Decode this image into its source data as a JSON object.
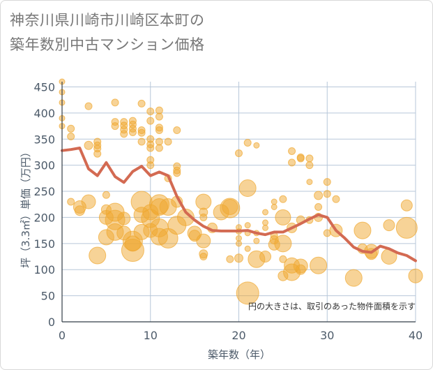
{
  "chart_data": {
    "type": "scatter",
    "title": "神奈川県川崎市川崎区本町の\n築年数別中古マンション価格",
    "xlabel": "築年数（年）",
    "ylabel": "坪（3.3㎡）単価（万円）",
    "note": "円の大きさは、取引のあった物件面積を示す",
    "xlim": [
      0,
      40
    ],
    "ylim": [
      0,
      460
    ],
    "xticks": [
      0,
      10,
      20,
      30,
      40
    ],
    "yticks": [
      0,
      50,
      100,
      150,
      200,
      250,
      300,
      350,
      400,
      450
    ],
    "grid": true,
    "colors": {
      "bubble": "#f0a830",
      "line": "#d36a52",
      "grid": "#b7c7d9"
    },
    "trend_line": {
      "x": [
        0,
        1,
        2,
        3,
        4,
        5,
        6,
        7,
        8,
        9,
        10,
        11,
        12,
        13,
        14,
        15,
        16,
        17,
        18,
        19,
        20,
        21,
        22,
        23,
        24,
        25,
        26,
        27,
        28,
        29,
        30,
        31,
        32,
        33,
        34,
        35,
        36,
        37,
        38,
        39,
        40
      ],
      "y": [
        328,
        330,
        333,
        293,
        280,
        305,
        278,
        267,
        288,
        298,
        280,
        287,
        280,
        240,
        210,
        195,
        183,
        175,
        174,
        174,
        174,
        175,
        170,
        167,
        172,
        172,
        180,
        188,
        197,
        205,
        200,
        175,
        160,
        143,
        135,
        133,
        145,
        140,
        132,
        127,
        117
      ]
    },
    "points": [
      {
        "x": 0,
        "y": 460,
        "s": 4
      },
      {
        "x": 0,
        "y": 440,
        "s": 4
      },
      {
        "x": 0,
        "y": 420,
        "s": 4
      },
      {
        "x": 0,
        "y": 390,
        "s": 4
      },
      {
        "x": 0,
        "y": 375,
        "s": 4
      },
      {
        "x": 1,
        "y": 370,
        "s": 5
      },
      {
        "x": 1,
        "y": 355,
        "s": 5
      },
      {
        "x": 1,
        "y": 230,
        "s": 5
      },
      {
        "x": 2,
        "y": 220,
        "s": 9
      },
      {
        "x": 2,
        "y": 213,
        "s": 7
      },
      {
        "x": 3,
        "y": 413,
        "s": 5
      },
      {
        "x": 3,
        "y": 338,
        "s": 6
      },
      {
        "x": 3,
        "y": 230,
        "s": 10
      },
      {
        "x": 4,
        "y": 345,
        "s": 5
      },
      {
        "x": 4,
        "y": 338,
        "s": 5
      },
      {
        "x": 4,
        "y": 332,
        "s": 5
      },
      {
        "x": 4,
        "y": 322,
        "s": 5
      },
      {
        "x": 4,
        "y": 127,
        "s": 12
      },
      {
        "x": 5,
        "y": 243,
        "s": 5
      },
      {
        "x": 5,
        "y": 215,
        "s": 7
      },
      {
        "x": 5,
        "y": 200,
        "s": 10
      },
      {
        "x": 5,
        "y": 162,
        "s": 11
      },
      {
        "x": 6,
        "y": 420,
        "s": 5
      },
      {
        "x": 6,
        "y": 383,
        "s": 5
      },
      {
        "x": 6,
        "y": 375,
        "s": 5
      },
      {
        "x": 6,
        "y": 210,
        "s": 13
      },
      {
        "x": 6,
        "y": 195,
        "s": 14
      },
      {
        "x": 6,
        "y": 172,
        "s": 12
      },
      {
        "x": 7,
        "y": 383,
        "s": 5
      },
      {
        "x": 7,
        "y": 376,
        "s": 5
      },
      {
        "x": 7,
        "y": 368,
        "s": 5
      },
      {
        "x": 7,
        "y": 360,
        "s": 5
      },
      {
        "x": 7,
        "y": 198,
        "s": 9
      },
      {
        "x": 7,
        "y": 170,
        "s": 10
      },
      {
        "x": 8,
        "y": 385,
        "s": 5
      },
      {
        "x": 8,
        "y": 378,
        "s": 5
      },
      {
        "x": 8,
        "y": 370,
        "s": 5
      },
      {
        "x": 8,
        "y": 363,
        "s": 5
      },
      {
        "x": 8,
        "y": 155,
        "s": 14
      },
      {
        "x": 8,
        "y": 150,
        "s": 11
      },
      {
        "x": 8,
        "y": 137,
        "s": 16
      },
      {
        "x": 9,
        "y": 418,
        "s": 5
      },
      {
        "x": 9,
        "y": 367,
        "s": 5
      },
      {
        "x": 9,
        "y": 362,
        "s": 5
      },
      {
        "x": 9,
        "y": 345,
        "s": 5
      },
      {
        "x": 9,
        "y": 230,
        "s": 15
      },
      {
        "x": 9,
        "y": 205,
        "s": 11
      },
      {
        "x": 9,
        "y": 172,
        "s": 11
      },
      {
        "x": 10,
        "y": 403,
        "s": 5
      },
      {
        "x": 10,
        "y": 385,
        "s": 5
      },
      {
        "x": 10,
        "y": 350,
        "s": 5
      },
      {
        "x": 10,
        "y": 340,
        "s": 5
      },
      {
        "x": 10,
        "y": 333,
        "s": 5
      },
      {
        "x": 10,
        "y": 310,
        "s": 5
      },
      {
        "x": 10,
        "y": 300,
        "s": 5
      },
      {
        "x": 10,
        "y": 210,
        "s": 11
      },
      {
        "x": 10,
        "y": 198,
        "s": 13
      },
      {
        "x": 10,
        "y": 175,
        "s": 10
      },
      {
        "x": 11,
        "y": 405,
        "s": 5
      },
      {
        "x": 11,
        "y": 393,
        "s": 5
      },
      {
        "x": 11,
        "y": 372,
        "s": 5
      },
      {
        "x": 11,
        "y": 367,
        "s": 5
      },
      {
        "x": 11,
        "y": 345,
        "s": 5
      },
      {
        "x": 11,
        "y": 333,
        "s": 5
      },
      {
        "x": 11,
        "y": 225,
        "s": 14
      },
      {
        "x": 11,
        "y": 220,
        "s": 12
      },
      {
        "x": 11,
        "y": 180,
        "s": 13
      },
      {
        "x": 11,
        "y": 163,
        "s": 12
      },
      {
        "x": 12,
        "y": 345,
        "s": 5
      },
      {
        "x": 12,
        "y": 275,
        "s": 5
      },
      {
        "x": 12,
        "y": 220,
        "s": 12
      },
      {
        "x": 12,
        "y": 160,
        "s": 14
      },
      {
        "x": 13,
        "y": 367,
        "s": 5
      },
      {
        "x": 13,
        "y": 298,
        "s": 5
      },
      {
        "x": 13,
        "y": 290,
        "s": 5
      },
      {
        "x": 13,
        "y": 285,
        "s": 5
      },
      {
        "x": 13,
        "y": 230,
        "s": 8
      },
      {
        "x": 13,
        "y": 185,
        "s": 13
      },
      {
        "x": 14,
        "y": 200,
        "s": 12
      },
      {
        "x": 15,
        "y": 170,
        "s": 10
      },
      {
        "x": 15,
        "y": 165,
        "s": 8
      },
      {
        "x": 16,
        "y": 230,
        "s": 11
      },
      {
        "x": 16,
        "y": 210,
        "s": 6
      },
      {
        "x": 16,
        "y": 200,
        "s": 5
      },
      {
        "x": 16,
        "y": 155,
        "s": 10
      },
      {
        "x": 16,
        "y": 130,
        "s": 6
      },
      {
        "x": 16,
        "y": 125,
        "s": 5
      },
      {
        "x": 17,
        "y": 180,
        "s": 7
      },
      {
        "x": 18,
        "y": 210,
        "s": 11
      },
      {
        "x": 19,
        "y": 218,
        "s": 14
      },
      {
        "x": 19,
        "y": 220,
        "s": 11
      },
      {
        "x": 19,
        "y": 120,
        "s": 5
      },
      {
        "x": 20,
        "y": 323,
        "s": 5
      },
      {
        "x": 20,
        "y": 181,
        "s": 4
      },
      {
        "x": 20,
        "y": 173,
        "s": 4
      },
      {
        "x": 20,
        "y": 160,
        "s": 4
      },
      {
        "x": 20,
        "y": 150,
        "s": 4
      },
      {
        "x": 20,
        "y": 122,
        "s": 6
      },
      {
        "x": 21,
        "y": 343,
        "s": 5
      },
      {
        "x": 21,
        "y": 256,
        "s": 12
      },
      {
        "x": 21,
        "y": 185,
        "s": 4
      },
      {
        "x": 21,
        "y": 170,
        "s": 4
      },
      {
        "x": 21,
        "y": 140,
        "s": 4
      },
      {
        "x": 21,
        "y": 55,
        "s": 16
      },
      {
        "x": 22,
        "y": 338,
        "s": 4
      },
      {
        "x": 22,
        "y": 170,
        "s": 4
      },
      {
        "x": 22,
        "y": 155,
        "s": 4
      },
      {
        "x": 22,
        "y": 120,
        "s": 12
      },
      {
        "x": 23,
        "y": 210,
        "s": 4
      },
      {
        "x": 23,
        "y": 190,
        "s": 4
      },
      {
        "x": 23,
        "y": 180,
        "s": 4
      },
      {
        "x": 23,
        "y": 125,
        "s": 8
      },
      {
        "x": 24,
        "y": 230,
        "s": 4
      },
      {
        "x": 24,
        "y": 220,
        "s": 4
      },
      {
        "x": 24,
        "y": 165,
        "s": 5
      },
      {
        "x": 24,
        "y": 157,
        "s": 6
      },
      {
        "x": 24,
        "y": 148,
        "s": 8
      },
      {
        "x": 25,
        "y": 235,
        "s": 5
      },
      {
        "x": 25,
        "y": 200,
        "s": 11
      },
      {
        "x": 25,
        "y": 150,
        "s": 12
      },
      {
        "x": 25,
        "y": 120,
        "s": 5
      },
      {
        "x": 25,
        "y": 88,
        "s": 7
      },
      {
        "x": 26,
        "y": 327,
        "s": 5
      },
      {
        "x": 26,
        "y": 305,
        "s": 5
      },
      {
        "x": 26,
        "y": 180,
        "s": 7
      },
      {
        "x": 26,
        "y": 108,
        "s": 11
      },
      {
        "x": 26,
        "y": 95,
        "s": 12
      },
      {
        "x": 27,
        "y": 315,
        "s": 5
      },
      {
        "x": 27,
        "y": 313,
        "s": 5
      },
      {
        "x": 27,
        "y": 195,
        "s": 6
      },
      {
        "x": 27,
        "y": 107,
        "s": 10
      },
      {
        "x": 27,
        "y": 100,
        "s": 7
      },
      {
        "x": 28,
        "y": 313,
        "s": 5
      },
      {
        "x": 28,
        "y": 300,
        "s": 5
      },
      {
        "x": 28,
        "y": 268,
        "s": 4
      },
      {
        "x": 28,
        "y": 195,
        "s": 5
      },
      {
        "x": 29,
        "y": 242,
        "s": 6
      },
      {
        "x": 29,
        "y": 220,
        "s": 5
      },
      {
        "x": 29,
        "y": 200,
        "s": 6
      },
      {
        "x": 29,
        "y": 108,
        "s": 12
      },
      {
        "x": 30,
        "y": 268,
        "s": 5
      },
      {
        "x": 30,
        "y": 245,
        "s": 5
      },
      {
        "x": 30,
        "y": 170,
        "s": 5
      },
      {
        "x": 31,
        "y": 235,
        "s": 5
      },
      {
        "x": 31,
        "y": 175,
        "s": 9
      },
      {
        "x": 33,
        "y": 84,
        "s": 12
      },
      {
        "x": 34,
        "y": 175,
        "s": 12
      },
      {
        "x": 34,
        "y": 140,
        "s": 7
      },
      {
        "x": 35,
        "y": 135,
        "s": 10
      },
      {
        "x": 35,
        "y": 130,
        "s": 8
      },
      {
        "x": 37,
        "y": 185,
        "s": 8
      },
      {
        "x": 37,
        "y": 125,
        "s": 11
      },
      {
        "x": 39,
        "y": 223,
        "s": 8
      },
      {
        "x": 39,
        "y": 180,
        "s": 15
      },
      {
        "x": 40,
        "y": 88,
        "s": 10
      }
    ]
  }
}
